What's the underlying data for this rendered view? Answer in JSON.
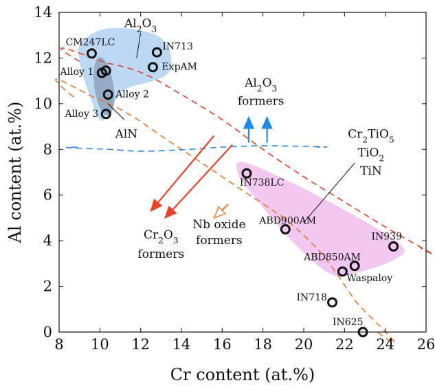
{
  "chart_data": {
    "type": "scatter",
    "title": "",
    "xlabel": "Cr content (at.%)",
    "ylabel": "Al content (at.%)",
    "xlim": [
      8,
      26
    ],
    "ylim": [
      0,
      14
    ],
    "xticks": [
      8,
      10,
      12,
      14,
      16,
      18,
      20,
      22,
      24,
      26
    ],
    "yticks": [
      0,
      2,
      4,
      6,
      8,
      10,
      12,
      14
    ],
    "grid": false,
    "points": [
      {
        "label": "CM247LC",
        "x": 9.6,
        "y": 12.2
      },
      {
        "label": "IN713",
        "x": 12.8,
        "y": 12.25
      },
      {
        "label": "ExpAM",
        "x": 12.6,
        "y": 11.6
      },
      {
        "label": "Alloy 1",
        "x": 10.1,
        "y": 11.35
      },
      {
        "label": "",
        "x": 10.3,
        "y": 11.45
      },
      {
        "label": "Alloy 2",
        "x": 10.4,
        "y": 10.4
      },
      {
        "label": "Alloy 3",
        "x": 10.3,
        "y": 9.55
      },
      {
        "label": "IN738LC",
        "x": 17.2,
        "y": 6.95
      },
      {
        "label": "ABD900AM",
        "x": 19.1,
        "y": 4.5
      },
      {
        "label": "IN939",
        "x": 24.4,
        "y": 3.75
      },
      {
        "label": "ABD850AM",
        "x": 22.5,
        "y": 2.9
      },
      {
        "label": "Waspaloy",
        "x": 21.9,
        "y": 2.65
      },
      {
        "label": "IN718",
        "x": 21.4,
        "y": 1.3
      },
      {
        "label": "IN625",
        "x": 22.9,
        "y": 0.0
      }
    ],
    "region_labels": {
      "al2o3": "Al2O3",
      "aln": "AlN",
      "al2o3_formers": [
        "Al2O3",
        "formers"
      ],
      "cr2o3_formers": [
        "Cr2O3",
        "formers"
      ],
      "nb_oxide_formers": [
        "Nb oxide",
        "formers"
      ],
      "ti_phases": [
        "Cr2TiO5",
        "TiO2",
        "TiN"
      ]
    },
    "colors": {
      "al2o3_region": "#bcd8f3",
      "aln_region": "#8ea5bb",
      "ti_region": "#f2c8f2",
      "red_boundary": "#e2402a",
      "orange_boundary": "#e87830",
      "blue_boundary": "#2f86e0",
      "arrow_blue": "#1f8ae6",
      "arrow_red": "#e8432a",
      "arrow_orange": "#ef7d30"
    }
  }
}
